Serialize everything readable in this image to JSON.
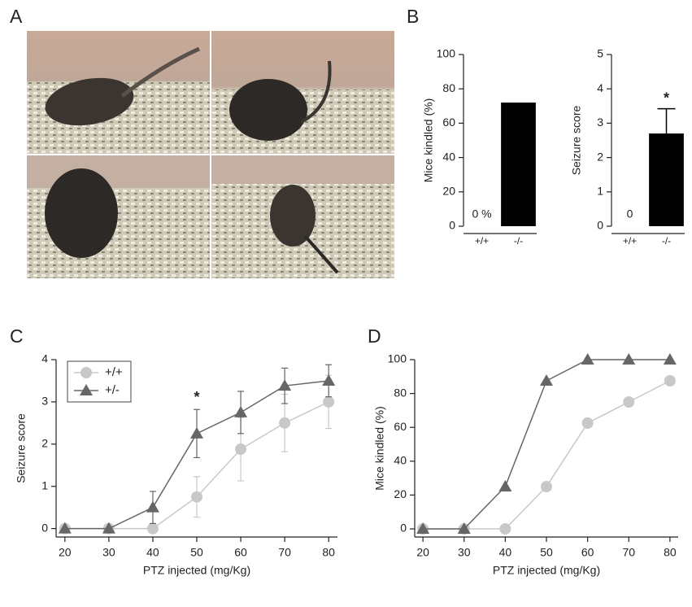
{
  "panel_labels": [
    "A",
    "B",
    "C",
    "D"
  ],
  "chart_data": [
    {
      "type": "bar",
      "ylabel": "Mice kindled (%)",
      "categories": [
        "+/+",
        "-/-"
      ],
      "values": [
        0,
        72
      ],
      "value_labels": [
        "0 %",
        null
      ],
      "color": "#000000",
      "ylim": [
        0,
        100
      ],
      "yticks": [
        0,
        20,
        40,
        60,
        80,
        100
      ]
    },
    {
      "type": "bar",
      "ylabel": "Seizure score",
      "categories": [
        "+/+",
        "-/-"
      ],
      "values": [
        0,
        2.7
      ],
      "errors": [
        0,
        0.72
      ],
      "value_labels": [
        "0",
        null
      ],
      "annotation_labels": [
        null,
        "*"
      ],
      "color": "#000000",
      "ylim": [
        0,
        5
      ],
      "yticks": [
        0,
        1,
        2,
        3,
        4,
        5
      ]
    },
    {
      "type": "line",
      "xlabel": "PTZ injected (mg/Kg)",
      "ylabel": "Seizure score",
      "x": [
        20,
        30,
        40,
        50,
        60,
        70,
        80
      ],
      "series": [
        {
          "name": "+/+",
          "color": "#c8c8c8",
          "marker": "circle",
          "values": [
            0,
            0,
            0,
            0.75,
            1.88,
            2.5,
            3.0
          ],
          "errors": [
            0,
            0,
            0,
            0.48,
            0.75,
            0.68,
            0.63
          ]
        },
        {
          "name": "+/-",
          "color": "#666666",
          "marker": "triangle",
          "values": [
            0,
            0,
            0.5,
            2.25,
            2.75,
            3.38,
            3.5
          ],
          "errors": [
            0,
            0,
            0.38,
            0.57,
            0.5,
            0.42,
            0.38
          ]
        }
      ],
      "annotations": [
        {
          "text": "*",
          "x": 50
        }
      ],
      "legend": "upper left",
      "xlim": [
        18,
        82
      ],
      "xticks": [
        20,
        30,
        40,
        50,
        60,
        70,
        80
      ],
      "ylim": [
        -0.2,
        4
      ],
      "yticks": [
        0,
        1,
        2,
        3,
        4
      ]
    },
    {
      "type": "line",
      "xlabel": "PTZ injected (mg/Kg)",
      "ylabel": "Mice kindled (%)",
      "x": [
        20,
        30,
        40,
        50,
        60,
        70,
        80
      ],
      "series": [
        {
          "color": "#c8c8c8",
          "marker": "circle",
          "values": [
            0,
            0,
            0,
            25,
            62.5,
            75,
            87.5
          ]
        },
        {
          "color": "#666666",
          "marker": "triangle",
          "values": [
            0,
            0,
            25,
            87.5,
            100,
            100,
            100
          ]
        }
      ],
      "xlim": [
        18,
        82
      ],
      "xticks": [
        20,
        30,
        40,
        50,
        60,
        70,
        80
      ],
      "ylim": [
        -4.8,
        100
      ],
      "yticks": [
        0,
        20,
        40,
        60,
        80,
        100
      ]
    }
  ]
}
